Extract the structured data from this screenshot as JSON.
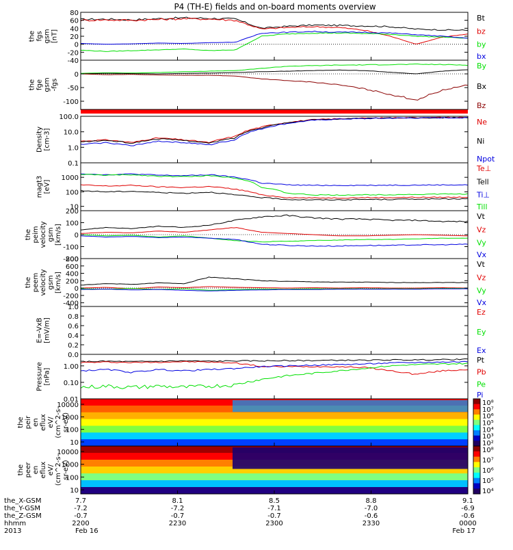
{
  "title": "P4 (TH-E) fields and on-board moments overview",
  "colors": {
    "black": "#000000",
    "red": "#e00000",
    "green": "#00e000",
    "blue": "#0000e0",
    "darkred": "#8b0000",
    "bar": "#ff0000"
  },
  "chart_data": [
    {
      "type": "line",
      "ylabel_lines": [
        "the",
        "fgs",
        "gsm",
        "[nT]"
      ],
      "ylim": [
        -40,
        80
      ],
      "yticks": [
        "80",
        "60",
        "40",
        "20",
        "0",
        "-20",
        "-40"
      ],
      "series": [
        {
          "name": "Bt",
          "color": "#000000",
          "values": [
            62,
            63,
            61,
            64,
            66,
            65,
            63,
            40,
            45,
            48,
            47,
            46,
            44,
            38,
            36,
            35
          ]
        },
        {
          "name": "bz",
          "color": "#e00000",
          "values": [
            60,
            61,
            60,
            62,
            64,
            63,
            60,
            38,
            42,
            44,
            42,
            35,
            20,
            0,
            18,
            25
          ]
        },
        {
          "name": "by",
          "color": "#00e000",
          "values": [
            -15,
            -18,
            -16,
            -14,
            -12,
            -16,
            -14,
            20,
            26,
            28,
            28,
            27,
            25,
            20,
            18,
            15
          ]
        },
        {
          "name": "bx",
          "color": "#0000e0",
          "values": [
            2,
            0,
            1,
            3,
            2,
            4,
            5,
            28,
            30,
            32,
            30,
            30,
            28,
            24,
            20,
            15
          ]
        }
      ]
    },
    {
      "type": "line",
      "ylabel_lines": [
        "the",
        "fge",
        "gsm",
        "-fgs"
      ],
      "ylim": [
        -130,
        50
      ],
      "yticks": [
        "0",
        "-50",
        "-100"
      ],
      "series": [
        {
          "name": "By",
          "color": "#00e000",
          "values": [
            2,
            4,
            3,
            5,
            8,
            10,
            12,
            20,
            28,
            30,
            32,
            33,
            34,
            35,
            34,
            32
          ]
        },
        {
          "name": "Bx",
          "color": "#000000",
          "values": [
            0,
            2,
            1,
            0,
            2,
            3,
            5,
            8,
            10,
            12,
            14,
            12,
            6,
            0,
            10,
            15
          ]
        },
        {
          "name": "Bz",
          "color": "#8b0000",
          "values": [
            0,
            -3,
            -2,
            -4,
            -5,
            -5,
            -8,
            -18,
            -25,
            -30,
            -40,
            -55,
            -75,
            -95,
            -60,
            -40
          ]
        }
      ]
    },
    {
      "type": "line",
      "log": true,
      "ylabel_lines": [
        "Density",
        "[cm-3]"
      ],
      "ylim": [
        0.1,
        100
      ],
      "yticks": [
        "100.0",
        "10.0",
        "1.0",
        "0.1"
      ],
      "series": [
        {
          "name": "Ne",
          "color": "#e00000",
          "values": [
            2.5,
            3,
            2,
            4,
            3,
            2,
            5,
            20,
            40,
            60,
            70,
            75,
            80,
            82,
            84,
            85
          ]
        },
        {
          "name": "Ni",
          "color": "#000000",
          "values": [
            2.2,
            2.8,
            1.8,
            3.5,
            2.8,
            1.8,
            4,
            18,
            38,
            58,
            68,
            72,
            78,
            80,
            82,
            83
          ]
        },
        {
          "name": "Npot",
          "color": "#0000e0",
          "values": [
            1.5,
            2,
            1.2,
            2.5,
            2,
            1.4,
            3,
            15,
            34,
            55,
            66,
            70,
            76,
            78,
            80,
            82
          ]
        }
      ]
    },
    {
      "type": "line",
      "log": true,
      "ylabel_lines": [
        "magt3",
        "[eV]"
      ],
      "ylim": [
        5,
        10000
      ],
      "yticks": [
        "1000",
        "100",
        "10"
      ],
      "series": [
        {
          "name": "Te⊥",
          "color": "#e00000",
          "values": [
            300,
            250,
            280,
            220,
            200,
            230,
            150,
            60,
            40,
            38,
            38,
            40,
            40,
            42,
            42,
            43
          ]
        },
        {
          "name": "Tell",
          "color": "#000000",
          "values": [
            120,
            100,
            110,
            90,
            80,
            95,
            60,
            40,
            30,
            28,
            28,
            30,
            30,
            32,
            32,
            33
          ]
        },
        {
          "name": "Ti⊥",
          "color": "#0000e0",
          "values": [
            1800,
            1500,
            1700,
            1400,
            1300,
            1500,
            1000,
            400,
            300,
            280,
            280,
            280,
            290,
            290,
            300,
            300
          ]
        },
        {
          "name": "Till",
          "color": "#00e000",
          "values": [
            1600,
            1400,
            1500,
            1200,
            1100,
            1300,
            900,
            200,
            80,
            60,
            60,
            62,
            64,
            66,
            70,
            72
          ]
        }
      ]
    },
    {
      "type": "line",
      "ylabel_lines": [
        "the",
        "peim",
        "velocity",
        "gsm",
        "[km/s]"
      ],
      "ylim": [
        -200,
        200
      ],
      "yticks": [
        "200",
        "100",
        "0",
        "-100",
        "-200"
      ],
      "series": [
        {
          "name": "Vt",
          "color": "#000000",
          "values": [
            40,
            60,
            50,
            70,
            60,
            80,
            120,
            150,
            160,
            140,
            130,
            130,
            120,
            120,
            110,
            110
          ]
        },
        {
          "name": "Vz",
          "color": "#e00000",
          "values": [
            10,
            20,
            15,
            30,
            20,
            40,
            60,
            20,
            10,
            0,
            -10,
            -10,
            -5,
            0,
            -5,
            -10
          ]
        },
        {
          "name": "Vy",
          "color": "#00e000",
          "values": [
            0,
            -10,
            -5,
            -20,
            -10,
            -30,
            -50,
            -60,
            -55,
            -50,
            -45,
            -40,
            -40,
            -35,
            -30,
            -30
          ]
        },
        {
          "name": "Vx",
          "color": "#0000e0",
          "values": [
            -10,
            -20,
            -15,
            -25,
            -20,
            -30,
            -40,
            -80,
            -90,
            -95,
            -95,
            -90,
            -90,
            -85,
            -85,
            -80
          ]
        }
      ]
    },
    {
      "type": "line",
      "ylabel_lines": [
        "the",
        "peem",
        "velocity",
        "gsm",
        "[km/s]"
      ],
      "ylim": [
        -500,
        800
      ],
      "yticks": [
        "800",
        "600",
        "400",
        "200",
        "0",
        "-200",
        "-400"
      ],
      "series": [
        {
          "name": "Vt",
          "color": "#000000",
          "values": [
            80,
            120,
            100,
            140,
            120,
            300,
            250,
            200,
            180,
            170,
            160,
            160,
            150,
            150,
            150,
            150
          ]
        },
        {
          "name": "Vz",
          "color": "#e00000",
          "values": [
            0,
            20,
            -20,
            30,
            10,
            40,
            20,
            10,
            0,
            10,
            0,
            10,
            0,
            0,
            10,
            0
          ]
        },
        {
          "name": "Vy",
          "color": "#00e000",
          "values": [
            -20,
            -30,
            -10,
            -40,
            -20,
            -60,
            -40,
            -30,
            -30,
            -20,
            -20,
            -20,
            -20,
            -20,
            -10,
            -10
          ]
        },
        {
          "name": "Vx",
          "color": "#0000e0",
          "values": [
            -40,
            -30,
            -50,
            -40,
            -60,
            -80,
            -60,
            -50,
            -40,
            -40,
            -30,
            -30,
            -30,
            -30,
            -20,
            -20
          ]
        }
      ]
    },
    {
      "type": "line",
      "ylabel_lines": [
        "E=-VxB",
        "[mV/m]"
      ],
      "ylim": [
        0,
        1
      ],
      "yticks": [
        "1.0",
        "0.8",
        "0.6",
        "0.4",
        "0.2",
        "0.0"
      ],
      "series": [
        {
          "name": "Ez",
          "color": "#e00000",
          "values": []
        },
        {
          "name": "Ey",
          "color": "#00e000",
          "values": []
        },
        {
          "name": "Ex",
          "color": "#0000e0",
          "values": []
        }
      ]
    },
    {
      "type": "line",
      "log": true,
      "ylabel_lines": [
        "Pressure",
        "[nPa]"
      ],
      "ylim": [
        0.01,
        5
      ],
      "yticks": [
        "1.00",
        "0.10",
        "0.01"
      ],
      "series": [
        {
          "name": "Pt",
          "color": "#000000",
          "values": [
            1.8,
            1.9,
            1.8,
            1.9,
            2.0,
            1.9,
            2.0,
            2.0,
            2.1,
            2.1,
            2.2,
            2.2,
            2.3,
            2.3,
            2.4,
            2.5
          ]
        },
        {
          "name": "Pb",
          "color": "#e00000",
          "values": [
            1.6,
            1.7,
            1.6,
            1.7,
            1.8,
            1.7,
            1.5,
            0.9,
            0.9,
            0.9,
            0.9,
            0.8,
            0.5,
            0.3,
            0.5,
            0.6
          ]
        },
        {
          "name": "Pe",
          "color": "#00e000",
          "values": [
            0.05,
            0.06,
            0.05,
            0.06,
            0.05,
            0.06,
            0.07,
            0.15,
            0.25,
            0.35,
            0.5,
            0.7,
            1.0,
            1.2,
            1.3,
            1.4
          ]
        },
        {
          "name": "Pi",
          "color": "#0000e0",
          "values": [
            0.5,
            0.6,
            0.4,
            0.6,
            0.5,
            0.6,
            0.7,
            0.9,
            1.0,
            1.1,
            1.2,
            1.3,
            1.5,
            1.6,
            1.7,
            1.8
          ]
        }
      ]
    },
    {
      "type": "heatmap",
      "ylabel_lines": [
        "the",
        "peir",
        "en",
        "eflux",
        "eV/",
        "(cm^2-s-",
        "sr-eV)"
      ],
      "yticks": [
        "10000",
        "1000",
        "100",
        "10"
      ],
      "colorbar_ticks": [
        "10⁸",
        "10⁷",
        "10⁶",
        "10⁵",
        "10⁴",
        "10³",
        "10²"
      ]
    },
    {
      "type": "heatmap",
      "ylabel_lines": [
        "the",
        "peer",
        "en",
        "eflux",
        "eV/",
        "(cm^2-s-",
        "sr-eV)"
      ],
      "yticks": [
        "10000",
        "1000",
        "100",
        "10"
      ],
      "colorbar_ticks": [
        "10⁸",
        "10⁷",
        "10⁶",
        "10⁵",
        "10⁴"
      ]
    }
  ],
  "x_axis": {
    "row_labels": [
      "the_X-GSM",
      "the_Y-GSM",
      "the_Z-GSM",
      "hhmm",
      "2013"
    ],
    "ticks": [
      {
        "rows": [
          "7.7",
          "-7.2",
          "-0.7",
          "2200",
          "Feb 16"
        ]
      },
      {
        "rows": [
          "8.1",
          "-7.2",
          "-0.7",
          "2230",
          ""
        ]
      },
      {
        "rows": [
          "8.5",
          "-7.1",
          "-0.7",
          "2300",
          ""
        ]
      },
      {
        "rows": [
          "8.8",
          "-7.0",
          "-0.6",
          "2330",
          ""
        ]
      },
      {
        "rows": [
          "9.1",
          "-6.9",
          "-0.6",
          "0000",
          "Feb 17"
        ]
      }
    ]
  }
}
